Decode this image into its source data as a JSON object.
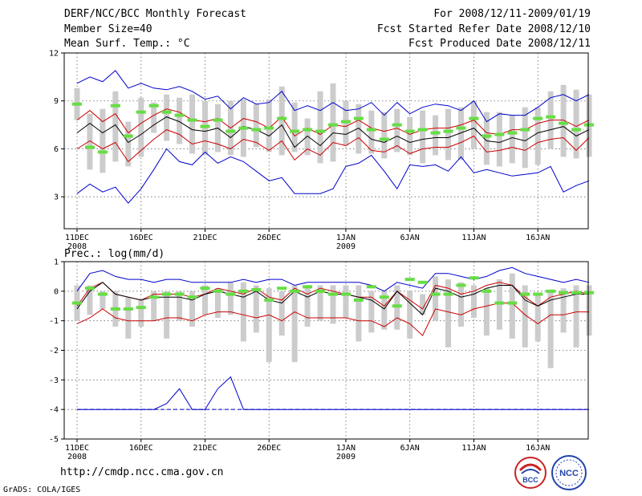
{
  "header": {
    "title": "DERF/NCC/BCC Monthly Forecast",
    "member_size": "Member Size=40",
    "variable1": "Mean Surf. Temp.: °C",
    "period": "For 2008/12/11-2009/01/19",
    "fcst_start": "Fcst Started Refer Date 2008/12/10",
    "fcst_produced": "Fcst Produced Date 2008/12/11"
  },
  "footer": {
    "url": "http://cmdp.ncc.cma.gov.cn",
    "credit": "GrADS: COLA/IGES",
    "logo_bcc": "BCC",
    "logo_ncc": "NCC"
  },
  "colors": {
    "max_min": "#0000cc",
    "spread": "#cc0000",
    "mean": "#000000",
    "obs_marker": "#66dd44",
    "box": "#cccccc"
  },
  "chart_data": [
    {
      "type": "line",
      "title": "Mean Surf. Temp.: °C",
      "ylim": [
        1,
        12
      ],
      "yticks": [
        3,
        6,
        9,
        12
      ],
      "x_labels": [
        {
          "day": 1,
          "label": "11DEC",
          "sub": "2008"
        },
        {
          "day": 6,
          "label": "16DEC"
        },
        {
          "day": 11,
          "label": "21DEC"
        },
        {
          "day": 16,
          "label": "26DEC"
        },
        {
          "day": 22,
          "label": "1JAN",
          "sub": "2009"
        },
        {
          "day": 27,
          "label": "6JAN"
        },
        {
          "day": 32,
          "label": "11JAN"
        },
        {
          "day": 37,
          "label": "16JAN"
        }
      ],
      "series": [
        {
          "name": "max",
          "color": "#0000cc",
          "values": [
            10.1,
            10.5,
            10.2,
            10.9,
            9.8,
            10.1,
            9.8,
            9.7,
            9.9,
            9.6,
            9.1,
            9.3,
            8.5,
            9.2,
            8.8,
            8.9,
            9.6,
            8.4,
            8.7,
            8.4,
            8.9,
            8.4,
            8.5,
            8.9,
            8.1,
            8.9,
            8.2,
            8.6,
            8.8,
            8.7,
            8.4,
            9.0,
            7.7,
            8.2,
            8.1,
            8.1,
            8.6,
            9.2,
            9.4,
            9.0,
            9.4
          ]
        },
        {
          "name": "upper",
          "color": "#cc0000",
          "values": [
            7.8,
            8.4,
            7.7,
            8.2,
            7.0,
            7.6,
            8.1,
            8.5,
            8.3,
            7.8,
            7.7,
            7.9,
            7.3,
            7.9,
            7.7,
            7.3,
            8.0,
            6.8,
            7.3,
            6.9,
            7.5,
            7.4,
            7.8,
            7.3,
            7.1,
            7.3,
            6.9,
            7.2,
            7.3,
            7.3,
            7.5,
            7.8,
            7.0,
            6.9,
            7.2,
            7.2,
            7.6,
            7.8,
            7.8,
            7.4,
            7.8
          ]
        },
        {
          "name": "mean",
          "color": "#000000",
          "values": [
            7.0,
            7.6,
            7.0,
            7.5,
            6.4,
            6.9,
            7.5,
            8.0,
            7.7,
            7.2,
            7.1,
            7.3,
            6.7,
            7.4,
            7.2,
            6.8,
            7.5,
            6.1,
            6.8,
            6.2,
            7.0,
            6.9,
            7.3,
            6.6,
            6.4,
            6.8,
            6.4,
            6.6,
            6.7,
            6.7,
            7.0,
            7.3,
            6.5,
            6.4,
            6.7,
            6.5,
            7.0,
            7.2,
            7.4,
            6.8,
            7.2
          ]
        },
        {
          "name": "lower",
          "color": "#cc0000",
          "values": [
            6.0,
            6.5,
            6.0,
            6.4,
            5.2,
            5.9,
            6.6,
            7.2,
            6.9,
            6.3,
            6.5,
            6.3,
            6.0,
            6.6,
            6.4,
            5.9,
            6.5,
            5.3,
            6.0,
            5.6,
            6.4,
            6.2,
            6.7,
            5.9,
            5.8,
            6.2,
            5.7,
            6.0,
            6.1,
            6.1,
            6.4,
            6.8,
            5.8,
            5.9,
            6.1,
            5.9,
            6.4,
            6.6,
            6.7,
            5.9,
            6.7
          ]
        },
        {
          "name": "min",
          "color": "#0000cc",
          "values": [
            3.2,
            3.8,
            3.3,
            3.6,
            2.6,
            3.5,
            4.7,
            6.0,
            5.2,
            5.0,
            5.8,
            5.1,
            5.5,
            5.2,
            4.6,
            4.0,
            4.2,
            3.2,
            3.2,
            3.2,
            3.5,
            4.9,
            5.1,
            5.6,
            4.6,
            3.5,
            5.0,
            4.9,
            5.0,
            4.6,
            5.5,
            4.5,
            4.7,
            4.5,
            4.3,
            4.4,
            4.5,
            4.9,
            3.3,
            3.7,
            4.0
          ]
        }
      ],
      "boxes": {
        "low": [
          7.8,
          4.7,
          4.5,
          5.2,
          4.9,
          5.5,
          7.0,
          6.5,
          6.3,
          5.7,
          5.6,
          5.8,
          5.6,
          5.5,
          6.1,
          5.8,
          5.6,
          5.8,
          5.6,
          5.1,
          5.2,
          6.2,
          5.7,
          5.7,
          5.4,
          5.8,
          5.6,
          5.1,
          5.6,
          5.3,
          5.3,
          6.0,
          5.0,
          4.9,
          5.1,
          4.8,
          5.0,
          6.0,
          5.5,
          5.4,
          5.5
        ],
        "high": [
          9.8,
          8.2,
          8.5,
          9.6,
          7.7,
          9.2,
          8.9,
          9.4,
          9.2,
          9.4,
          9.0,
          8.8,
          9.0,
          9.1,
          8.8,
          9.1,
          9.9,
          8.9,
          7.9,
          9.6,
          10.1,
          9.0,
          8.8,
          8.4,
          8.3,
          8.5,
          8.0,
          8.4,
          8.1,
          8.5,
          8.6,
          9.0,
          8.3,
          8.3,
          8.1,
          8.6,
          8.6,
          9.6,
          10.0,
          9.7,
          9.4
        ]
      },
      "observed": [
        8.8,
        6.1,
        5.8,
        8.7,
        6.8,
        8.3,
        8.7,
        8.3,
        8.1,
        7.8,
        7.4,
        7.8,
        7.1,
        7.3,
        7.2,
        7.3,
        7.9,
        7.1,
        7.2,
        7.1,
        7.5,
        7.7,
        7.9,
        7.2,
        6.6,
        7.5,
        7.1,
        7.2,
        7.0,
        7.1,
        7.3,
        7.9,
        6.8,
        6.9,
        7.0,
        7.2,
        7.9,
        8.0,
        7.6,
        7.2,
        7.5
      ]
    },
    {
      "type": "line",
      "title": "Prec.: log(mm/d)",
      "ylim": [
        -5,
        1
      ],
      "yticks": [
        -5,
        -4,
        -3,
        -2,
        -1,
        0,
        1
      ],
      "x_labels": [
        {
          "day": 1,
          "label": "11DEC",
          "sub": "2008"
        },
        {
          "day": 6,
          "label": "16DEC"
        },
        {
          "day": 11,
          "label": "21DEC"
        },
        {
          "day": 16,
          "label": "26DEC"
        },
        {
          "day": 22,
          "label": "1JAN",
          "sub": "2009"
        },
        {
          "day": 27,
          "label": "6JAN"
        },
        {
          "day": 32,
          "label": "11JAN"
        },
        {
          "day": 37,
          "label": "16JAN"
        }
      ],
      "series": [
        {
          "name": "max",
          "color": "#0000cc",
          "values": [
            0.0,
            0.6,
            0.7,
            0.5,
            0.4,
            0.4,
            0.3,
            0.4,
            0.4,
            0.3,
            0.3,
            0.3,
            0.3,
            0.4,
            0.3,
            0.4,
            0.4,
            0.2,
            0.3,
            0.3,
            0.3,
            0.3,
            0.3,
            0.2,
            0.0,
            0.3,
            0.2,
            0.1,
            0.6,
            0.6,
            0.5,
            0.4,
            0.5,
            0.7,
            0.8,
            0.6,
            0.5,
            0.4,
            0.3,
            0.4,
            0.3
          ]
        },
        {
          "name": "upper",
          "color": "#cc0000",
          "values": [
            -0.5,
            0.1,
            0.3,
            -0.1,
            -0.2,
            -0.3,
            -0.1,
            -0.1,
            -0.1,
            -0.2,
            -0.1,
            0.1,
            0.0,
            -0.1,
            0.1,
            -0.2,
            -0.3,
            0.1,
            -0.1,
            0.1,
            0.0,
            -0.1,
            -0.2,
            -0.2,
            -0.5,
            0.0,
            -0.3,
            -0.6,
            0.2,
            0.1,
            -0.1,
            0.0,
            0.2,
            0.3,
            0.2,
            -0.2,
            -0.5,
            -0.2,
            -0.1,
            0.0,
            -0.1
          ]
        },
        {
          "name": "mean",
          "color": "#000000",
          "values": [
            -0.6,
            0.0,
            0.3,
            -0.1,
            -0.2,
            -0.3,
            -0.2,
            -0.2,
            -0.2,
            -0.3,
            -0.1,
            0.0,
            -0.1,
            -0.2,
            0.0,
            -0.3,
            -0.4,
            0.0,
            -0.2,
            0.0,
            -0.1,
            -0.1,
            -0.2,
            -0.3,
            -0.6,
            0.0,
            -0.4,
            -0.8,
            0.1,
            0.0,
            -0.2,
            -0.1,
            0.1,
            0.2,
            0.2,
            -0.3,
            -0.5,
            -0.3,
            -0.2,
            -0.1,
            -0.1
          ]
        },
        {
          "name": "lower",
          "color": "#cc0000",
          "values": [
            -1.1,
            -0.9,
            -0.6,
            -0.9,
            -1.0,
            -1.0,
            -1.0,
            -0.9,
            -0.9,
            -1.0,
            -0.8,
            -0.7,
            -0.7,
            -0.8,
            -0.9,
            -0.8,
            -1.0,
            -0.7,
            -0.9,
            -0.9,
            -0.9,
            -0.9,
            -1.0,
            -1.0,
            -1.2,
            -0.9,
            -1.1,
            -1.5,
            -0.6,
            -0.7,
            -0.8,
            -0.6,
            -0.5,
            -0.4,
            -0.4,
            -0.8,
            -1.1,
            -0.8,
            -0.8,
            -0.7,
            -0.7
          ]
        },
        {
          "name": "min",
          "color": "#0000cc",
          "values": [
            -4.0,
            -4.0,
            -4.0,
            -4.0,
            -4.0,
            -4.0,
            -4.0,
            -3.8,
            -3.3,
            -4.0,
            -4.0,
            -3.3,
            -2.9,
            -4.0,
            -4.0,
            -4.0,
            -4.0,
            -4.0,
            -4.0,
            -4.0,
            -4.0,
            -4.0,
            -4.0,
            -4.0,
            -4.0,
            -4.0,
            -4.0,
            -4.0,
            -4.0,
            -4.0,
            -4.0,
            -4.0,
            -4.0,
            -4.0,
            -4.0,
            -4.0,
            -4.0,
            -4.0,
            -4.0,
            -4.0,
            -4.0
          ]
        }
      ],
      "boxes": {
        "low": [
          -1.0,
          -0.8,
          -0.6,
          -1.2,
          -1.6,
          -1.2,
          -1.0,
          -1.6,
          -1.0,
          -1.2,
          -0.8,
          -0.9,
          -0.8,
          -1.7,
          -1.4,
          -2.4,
          -1.5,
          -2.4,
          -1.2,
          -1.0,
          -1.1,
          -0.9,
          -1.7,
          -1.4,
          -1.3,
          -1.3,
          -1.6,
          -0.8,
          -1.0,
          -1.9,
          -1.2,
          -0.9,
          -1.5,
          -1.3,
          -1.6,
          -1.9,
          -1.7,
          -2.6,
          -1.4,
          -1.9,
          -1.5
        ],
        "high": [
          0.2,
          0.2,
          0.0,
          0.0,
          -0.2,
          -0.3,
          0.0,
          0.0,
          0.0,
          0.0,
          0.2,
          0.1,
          0.3,
          0.3,
          0.2,
          0.1,
          0.0,
          0.2,
          0.2,
          0.2,
          0.2,
          0.2,
          0.2,
          0.0,
          0.0,
          0.2,
          0.0,
          -0.1,
          0.5,
          0.4,
          0.3,
          0.2,
          0.1,
          0.4,
          0.6,
          0.2,
          -0.1,
          0.0,
          0.1,
          0.2,
          0.2
        ]
      },
      "observed": [
        -0.4,
        0.1,
        -0.1,
        -0.6,
        -0.6,
        -0.55,
        -0.2,
        -0.1,
        -0.1,
        -0.2,
        0.1,
        0.0,
        -0.1,
        0.0,
        0.05,
        -0.3,
        0.1,
        0.0,
        0.15,
        0.0,
        -0.1,
        -0.1,
        -0.3,
        0.15,
        -0.2,
        -0.5,
        0.4,
        0.3,
        -0.1,
        -0.1,
        0.2,
        0.45,
        0.0,
        -0.4,
        -0.4,
        -0.1,
        -0.1,
        0.0,
        -0.05,
        -0.05,
        -0.05
      ]
    }
  ]
}
